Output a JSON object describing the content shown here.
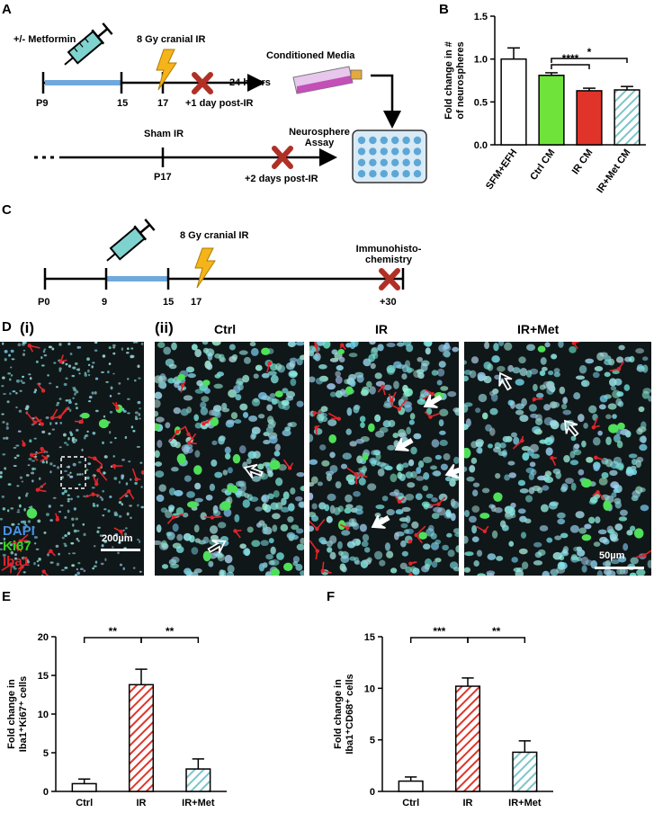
{
  "panels": {
    "A": "A",
    "B": "B",
    "C": "C",
    "D": "D",
    "E": "E",
    "F": "F",
    "Di": "(i)",
    "Dii": "(ii)"
  },
  "panel_a": {
    "metformin": "+/- Metformin",
    "ir_label": "8 Gy cranial IR",
    "p9": "P9",
    "d15": "15",
    "d17": "17",
    "post1": "+1 day post-IR",
    "hours24": "24 hours",
    "conditioned_media": "Conditioned Media",
    "sham_ir": "Sham IR",
    "p17": "P17",
    "neurosphere1": "Neurosphere",
    "neurosphere2": "Assay",
    "post2": "+2 days post-IR"
  },
  "panel_c": {
    "ir_label": "8 Gy cranial IR",
    "immuno1": "Immunohisto-",
    "immuno2": "chemistry",
    "p0": "P0",
    "d9": "9",
    "d15": "15",
    "d17": "17",
    "d30": "+30"
  },
  "panel_d": {
    "legend": [
      "DAPI",
      "Ki67",
      "Iba1"
    ],
    "legend_colors": [
      "#4a90e2",
      "#39d11f",
      "#e0242b"
    ],
    "scale_200": "200µm",
    "scale_50": "50µm",
    "titles": [
      "Ctrl",
      "IR",
      "IR+Met"
    ]
  },
  "chart_data": [
    {
      "id": "B",
      "type": "bar",
      "categories": [
        "SFM+EFH",
        "Ctrl CM",
        "IR CM",
        "IR+Met CM"
      ],
      "values": [
        1.0,
        0.81,
        0.63,
        0.64
      ],
      "errors": [
        0.13,
        0.03,
        0.03,
        0.04
      ],
      "fills": [
        "#ffffff",
        "#6fe33a",
        "#e0342a",
        "hatch-teal"
      ],
      "ylabel_lines": [
        "Fold change in #",
        "of neurospheres"
      ],
      "ylim": [
        0,
        1.5
      ],
      "yticks": [
        "0.0",
        "0.5",
        "1.0",
        "1.5"
      ],
      "significance": [
        {
          "from": 1,
          "to": 2,
          "label": "****"
        },
        {
          "from": 1,
          "to": 3,
          "label": "*"
        }
      ]
    },
    {
      "id": "E",
      "type": "bar",
      "categories": [
        "Ctrl",
        "IR",
        "IR+Met"
      ],
      "values": [
        1.0,
        13.8,
        2.9
      ],
      "errors": [
        0.6,
        2.0,
        1.3
      ],
      "fills": [
        "#ffffff",
        "hatch-red",
        "hatch-teal"
      ],
      "ylabel_lines": [
        "Fold change in",
        "Iba1⁺Ki67⁺ cells"
      ],
      "ylim": [
        0,
        20
      ],
      "yticks": [
        "0",
        "5",
        "10",
        "15",
        "20"
      ],
      "significance": [
        {
          "from": 0,
          "to": 1,
          "label": "**"
        },
        {
          "from": 1,
          "to": 2,
          "label": "**"
        }
      ]
    },
    {
      "id": "F",
      "type": "bar",
      "categories": [
        "Ctrl",
        "IR",
        "IR+Met"
      ],
      "values": [
        1.0,
        10.2,
        3.8
      ],
      "errors": [
        0.4,
        0.8,
        1.1
      ],
      "fills": [
        "#ffffff",
        "hatch-red",
        "hatch-teal"
      ],
      "ylabel_lines": [
        "Fold change in",
        "Iba1⁺CD68⁺ cells"
      ],
      "ylim": [
        0,
        15
      ],
      "yticks": [
        "0",
        "5",
        "10",
        "15"
      ],
      "significance": [
        {
          "from": 0,
          "to": 1,
          "label": "***"
        },
        {
          "from": 1,
          "to": 2,
          "label": "**"
        }
      ]
    }
  ]
}
